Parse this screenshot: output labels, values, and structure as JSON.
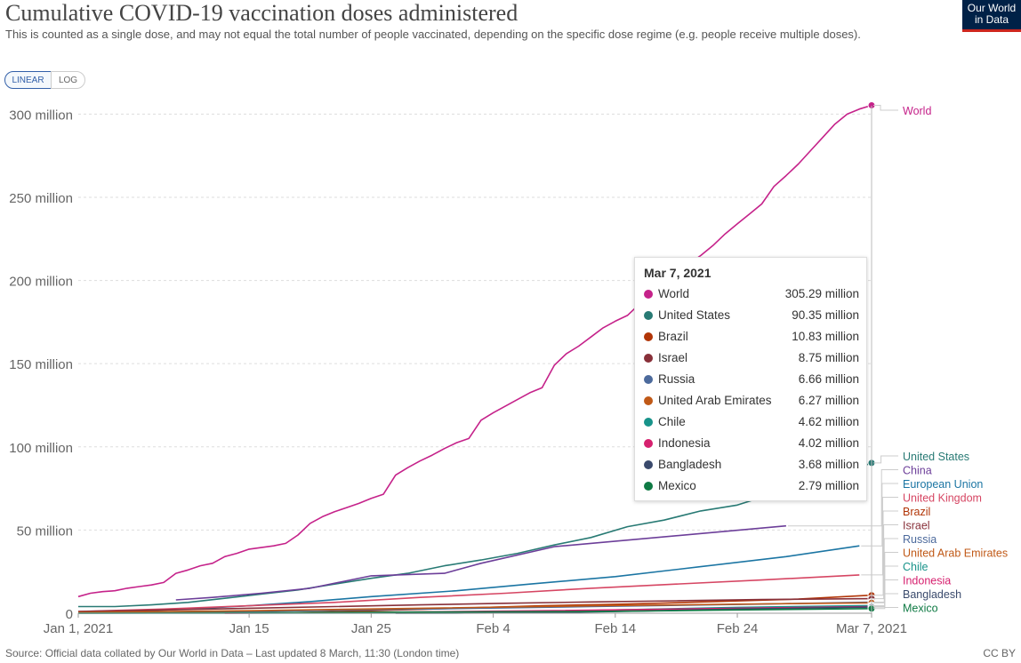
{
  "header": {
    "title": "Cumulative COVID-19 vaccination doses administered",
    "subtitle": "This is counted as a single dose, and may not equal the total number of people vaccinated, depending on the specific dose regime (e.g. people receive multiple doses).",
    "logo_line1": "Our World",
    "logo_line2": "in Data"
  },
  "controls": {
    "linear_label": "LINEAR",
    "log_label": "LOG",
    "selected": "LINEAR"
  },
  "tooltip": {
    "date": "Mar 7, 2021",
    "rows": [
      {
        "name": "World",
        "value": "305.29 million",
        "color": "#c5228a"
      },
      {
        "name": "United States",
        "value": "90.35 million",
        "color": "#287a74"
      },
      {
        "name": "Brazil",
        "value": "10.83 million",
        "color": "#b13507"
      },
      {
        "name": "Israel",
        "value": "8.75 million",
        "color": "#883039"
      },
      {
        "name": "Russia",
        "value": "6.66 million",
        "color": "#4c6a9c"
      },
      {
        "name": "United Arab Emirates",
        "value": "6.27 million",
        "color": "#c05917"
      },
      {
        "name": "Chile",
        "value": "4.62 million",
        "color": "#18938a"
      },
      {
        "name": "Indonesia",
        "value": "4.02 million",
        "color": "#d6216f"
      },
      {
        "name": "Bangladesh",
        "value": "3.68 million",
        "color": "#3a4a6c"
      },
      {
        "name": "Mexico",
        "value": "2.79 million",
        "color": "#0f7a44"
      }
    ]
  },
  "footer": {
    "source": "Source: Official data collated by Our World in Data – Last updated 8 March, 11:30 (London time)",
    "license": "CC BY"
  },
  "chart_data": {
    "type": "line",
    "x_unit": "days",
    "x_start": "2021-01-01",
    "x_end": "2021-03-07",
    "xlim": [
      "2021-01-01",
      "2021-03-07"
    ],
    "ylim": [
      0,
      305000000
    ],
    "yticks": [
      {
        "value": 0,
        "label": "0"
      },
      {
        "value": 50000000,
        "label": "50 million"
      },
      {
        "value": 100000000,
        "label": "100 million"
      },
      {
        "value": 150000000,
        "label": "150 million"
      },
      {
        "value": 200000000,
        "label": "200 million"
      },
      {
        "value": 250000000,
        "label": "250 million"
      },
      {
        "value": 300000000,
        "label": "300 million"
      }
    ],
    "xticks": [
      {
        "value": "2021-01-01",
        "label": "Jan 1, 2021"
      },
      {
        "value": "2021-01-15",
        "label": "Jan 15"
      },
      {
        "value": "2021-01-25",
        "label": "Jan 25"
      },
      {
        "value": "2021-02-04",
        "label": "Feb 4"
      },
      {
        "value": "2021-02-14",
        "label": "Feb 14"
      },
      {
        "value": "2021-02-24",
        "label": "Feb 24"
      },
      {
        "value": "2021-03-07",
        "label": "Mar 7, 2021"
      }
    ],
    "grid": "horizontal-dashed",
    "series": [
      {
        "name": "World",
        "color": "#c5228a",
        "end_marker": true,
        "points": [
          [
            "2021-01-01",
            10.0
          ],
          [
            "2021-01-02",
            12.0
          ],
          [
            "2021-01-03",
            13.0
          ],
          [
            "2021-01-04",
            13.5
          ],
          [
            "2021-01-05",
            15.0
          ],
          [
            "2021-01-06",
            16.0
          ],
          [
            "2021-01-07",
            17.0
          ],
          [
            "2021-01-08",
            18.5
          ],
          [
            "2021-01-09",
            24.0
          ],
          [
            "2021-01-10",
            26.0
          ],
          [
            "2021-01-11",
            28.5
          ],
          [
            "2021-01-12",
            30.0
          ],
          [
            "2021-01-13",
            34.0
          ],
          [
            "2021-01-14",
            36.0
          ],
          [
            "2021-01-15",
            38.5
          ],
          [
            "2021-01-16",
            39.5
          ],
          [
            "2021-01-17",
            40.5
          ],
          [
            "2021-01-18",
            42.0
          ],
          [
            "2021-01-19",
            47.0
          ],
          [
            "2021-01-20",
            54.0
          ],
          [
            "2021-01-21",
            58.0
          ],
          [
            "2021-01-22",
            61.0
          ],
          [
            "2021-01-23",
            63.5
          ],
          [
            "2021-01-24",
            66.0
          ],
          [
            "2021-01-25",
            69.0
          ],
          [
            "2021-01-26",
            71.5
          ],
          [
            "2021-01-27",
            83.0
          ],
          [
            "2021-01-28",
            87.5
          ],
          [
            "2021-01-29",
            91.5
          ],
          [
            "2021-01-30",
            95.0
          ],
          [
            "2021-01-31",
            99.0
          ],
          [
            "2021-02-01",
            102.5
          ],
          [
            "2021-02-02",
            105.0
          ],
          [
            "2021-02-03",
            116.0
          ],
          [
            "2021-02-04",
            120.5
          ],
          [
            "2021-02-05",
            124.5
          ],
          [
            "2021-02-06",
            128.5
          ],
          [
            "2021-02-07",
            132.5
          ],
          [
            "2021-02-08",
            135.5
          ],
          [
            "2021-02-09",
            149.0
          ],
          [
            "2021-02-10",
            156.0
          ],
          [
            "2021-02-11",
            160.5
          ],
          [
            "2021-02-12",
            166.0
          ],
          [
            "2021-02-13",
            171.5
          ],
          [
            "2021-02-14",
            175.5
          ],
          [
            "2021-02-15",
            179.0
          ],
          [
            "2021-02-16",
            186.0
          ],
          [
            "2021-02-17",
            193.0
          ],
          [
            "2021-02-18",
            200.0
          ],
          [
            "2021-02-19",
            205.0
          ],
          [
            "2021-02-20",
            210.0
          ],
          [
            "2021-02-21",
            215.0
          ],
          [
            "2021-02-22",
            221.0
          ],
          [
            "2021-02-23",
            228.0
          ],
          [
            "2021-02-24",
            234.0
          ],
          [
            "2021-02-25",
            240.0
          ],
          [
            "2021-02-26",
            246.0
          ],
          [
            "2021-02-27",
            256.5
          ],
          [
            "2021-02-28",
            263.0
          ],
          [
            "2021-03-01",
            270.0
          ],
          [
            "2021-03-02",
            278.0
          ],
          [
            "2021-03-03",
            286.0
          ],
          [
            "2021-03-04",
            294.0
          ],
          [
            "2021-03-05",
            300.0
          ],
          [
            "2021-03-06",
            303.0
          ],
          [
            "2021-03-07",
            305.29
          ]
        ]
      },
      {
        "name": "United States",
        "color": "#287a74",
        "end_marker": true,
        "points": [
          [
            "2021-01-01",
            4.0
          ],
          [
            "2021-01-04",
            4.0
          ],
          [
            "2021-01-07",
            5.0
          ],
          [
            "2021-01-10",
            6.5
          ],
          [
            "2021-01-13",
            9.0
          ],
          [
            "2021-01-16",
            11.5
          ],
          [
            "2021-01-19",
            14.0
          ],
          [
            "2021-01-22",
            17.5
          ],
          [
            "2021-01-25",
            21.0
          ],
          [
            "2021-01-28",
            24.0
          ],
          [
            "2021-01-31",
            28.5
          ],
          [
            "2021-02-03",
            32.0
          ],
          [
            "2021-02-06",
            36.0
          ],
          [
            "2021-02-09",
            41.0
          ],
          [
            "2021-02-12",
            45.5
          ],
          [
            "2021-02-15",
            52.0
          ],
          [
            "2021-02-18",
            56.0
          ],
          [
            "2021-02-21",
            61.5
          ],
          [
            "2021-02-24",
            65.0
          ],
          [
            "2021-02-27",
            72.0
          ],
          [
            "2021-03-02",
            78.0
          ],
          [
            "2021-03-05",
            85.0
          ],
          [
            "2021-03-07",
            90.35
          ]
        ]
      },
      {
        "name": "China",
        "color": "#6c3e99",
        "points": [
          [
            "2021-01-09",
            8.0
          ],
          [
            "2021-01-12",
            9.5
          ],
          [
            "2021-01-16",
            12.0
          ],
          [
            "2021-01-20",
            15.0
          ],
          [
            "2021-01-25",
            22.5
          ],
          [
            "2021-01-31",
            24.0
          ],
          [
            "2021-02-03",
            30.0
          ],
          [
            "2021-02-09",
            40.0
          ],
          [
            "2021-02-28",
            52.5
          ]
        ]
      },
      {
        "name": "European Union",
        "color": "#1b75a3",
        "points": [
          [
            "2021-01-01",
            0.5
          ],
          [
            "2021-01-05",
            1.0
          ],
          [
            "2021-01-10",
            2.5
          ],
          [
            "2021-01-15",
            4.5
          ],
          [
            "2021-01-20",
            7.0
          ],
          [
            "2021-01-25",
            10.0
          ],
          [
            "2021-02-01",
            13.5
          ],
          [
            "2021-02-07",
            17.5
          ],
          [
            "2021-02-14",
            22.0
          ],
          [
            "2021-02-21",
            28.0
          ],
          [
            "2021-02-28",
            34.0
          ],
          [
            "2021-03-06",
            40.5
          ]
        ]
      },
      {
        "name": "United Kingdom",
        "color": "#d64663",
        "points": [
          [
            "2021-01-01",
            1.0
          ],
          [
            "2021-01-08",
            2.5
          ],
          [
            "2021-01-15",
            4.5
          ],
          [
            "2021-01-22",
            6.5
          ],
          [
            "2021-01-29",
            9.5
          ],
          [
            "2021-02-05",
            12.0
          ],
          [
            "2021-02-12",
            15.0
          ],
          [
            "2021-02-19",
            17.5
          ],
          [
            "2021-02-26",
            20.0
          ],
          [
            "2021-03-06",
            23.0
          ]
        ]
      },
      {
        "name": "Brazil",
        "color": "#b13507",
        "end_marker": true,
        "points": [
          [
            "2021-01-18",
            0.2
          ],
          [
            "2021-01-25",
            1.5
          ],
          [
            "2021-02-01",
            3.0
          ],
          [
            "2021-02-08",
            4.5
          ],
          [
            "2021-02-15",
            5.5
          ],
          [
            "2021-02-22",
            7.0
          ],
          [
            "2021-03-01",
            8.5
          ],
          [
            "2021-03-07",
            10.83
          ]
        ]
      },
      {
        "name": "Israel",
        "color": "#883039",
        "end_marker": true,
        "points": [
          [
            "2021-01-01",
            1.0
          ],
          [
            "2021-01-08",
            2.0
          ],
          [
            "2021-01-15",
            3.0
          ],
          [
            "2021-01-22",
            4.0
          ],
          [
            "2021-01-29",
            5.0
          ],
          [
            "2021-02-05",
            6.0
          ],
          [
            "2021-02-12",
            6.8
          ],
          [
            "2021-02-19",
            7.5
          ],
          [
            "2021-02-26",
            8.2
          ],
          [
            "2021-03-07",
            8.75
          ]
        ]
      },
      {
        "name": "Russia",
        "color": "#4c6a9c",
        "end_marker": true,
        "points": [
          [
            "2021-01-01",
            0.3
          ],
          [
            "2021-01-15",
            1.0
          ],
          [
            "2021-01-29",
            2.5
          ],
          [
            "2021-02-12",
            4.0
          ],
          [
            "2021-02-26",
            5.5
          ],
          [
            "2021-03-07",
            6.66
          ]
        ]
      },
      {
        "name": "United Arab Emirates",
        "color": "#c05917",
        "end_marker": true,
        "points": [
          [
            "2021-01-01",
            0.5
          ],
          [
            "2021-01-15",
            1.5
          ],
          [
            "2021-01-29",
            3.0
          ],
          [
            "2021-02-12",
            4.5
          ],
          [
            "2021-02-26",
            5.6
          ],
          [
            "2021-03-07",
            6.27
          ]
        ]
      },
      {
        "name": "Chile",
        "color": "#18938a",
        "end_marker": true,
        "points": [
          [
            "2021-01-01",
            0.0
          ],
          [
            "2021-02-01",
            0.1
          ],
          [
            "2021-02-05",
            0.5
          ],
          [
            "2021-02-14",
            2.0
          ],
          [
            "2021-02-24",
            3.5
          ],
          [
            "2021-03-07",
            4.62
          ]
        ]
      },
      {
        "name": "Indonesia",
        "color": "#d6216f",
        "end_marker": true,
        "points": [
          [
            "2021-01-13",
            0.0
          ],
          [
            "2021-01-25",
            0.5
          ],
          [
            "2021-02-08",
            1.5
          ],
          [
            "2021-02-22",
            2.8
          ],
          [
            "2021-03-07",
            4.02
          ]
        ]
      },
      {
        "name": "Bangladesh",
        "color": "#3a4a6c",
        "end_marker": true,
        "points": [
          [
            "2021-01-27",
            0.0
          ],
          [
            "2021-02-07",
            0.2
          ],
          [
            "2021-02-14",
            1.0
          ],
          [
            "2021-02-24",
            2.5
          ],
          [
            "2021-03-07",
            3.68
          ]
        ]
      },
      {
        "name": "Mexico",
        "color": "#0f7a44",
        "end_marker": true,
        "points": [
          [
            "2021-01-01",
            0.0
          ],
          [
            "2021-01-15",
            0.3
          ],
          [
            "2021-01-29",
            0.7
          ],
          [
            "2021-02-12",
            1.0
          ],
          [
            "2021-02-22",
            1.8
          ],
          [
            "2021-03-07",
            2.79
          ]
        ]
      }
    ],
    "end_labels": [
      {
        "name": "World",
        "color": "#c5228a"
      },
      {
        "name": "United States",
        "color": "#287a74"
      },
      {
        "name": "China",
        "color": "#6c3e99"
      },
      {
        "name": "European Union",
        "color": "#1b75a3"
      },
      {
        "name": "United Kingdom",
        "color": "#d64663"
      },
      {
        "name": "Brazil",
        "color": "#b13507"
      },
      {
        "name": "Israel",
        "color": "#883039"
      },
      {
        "name": "Russia",
        "color": "#4c6a9c"
      },
      {
        "name": "United Arab Emirates",
        "color": "#c05917"
      },
      {
        "name": "Chile",
        "color": "#18938a"
      },
      {
        "name": "Indonesia",
        "color": "#d6216f"
      },
      {
        "name": "Bangladesh",
        "color": "#3a4a6c"
      },
      {
        "name": "Mexico",
        "color": "#0f7a44"
      }
    ]
  }
}
